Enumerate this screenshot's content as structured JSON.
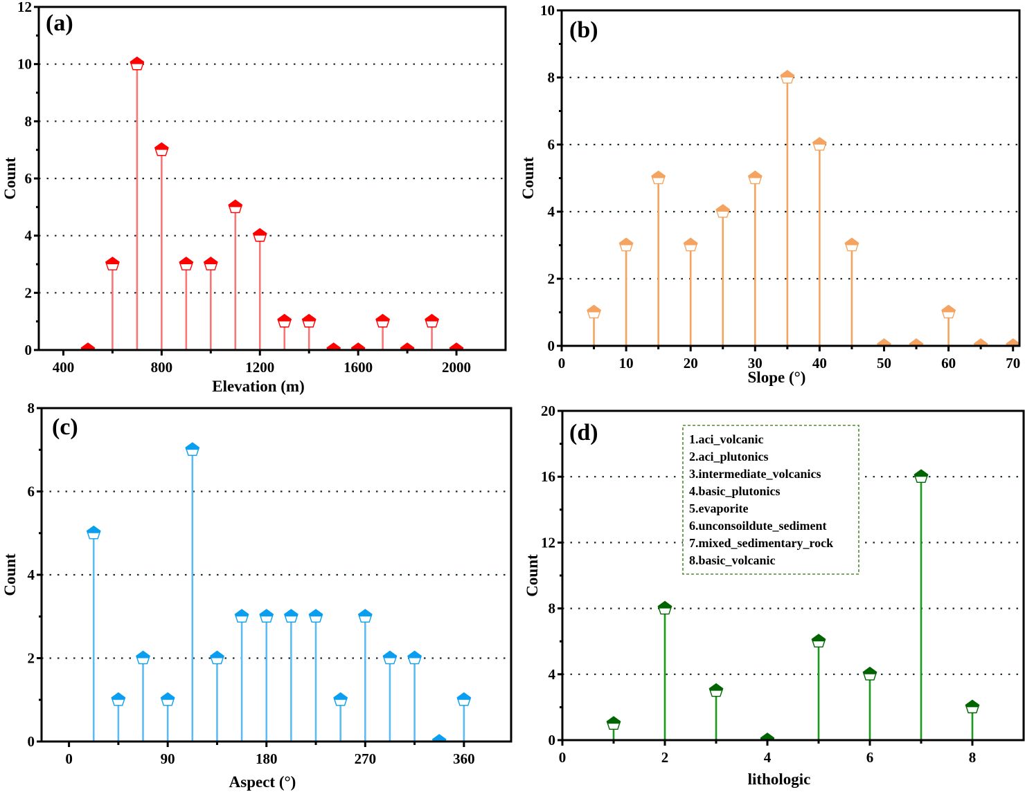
{
  "figure": {
    "panels": [
      "a",
      "b",
      "c",
      "d"
    ]
  },
  "chart_data": [
    {
      "id": "a",
      "type": "stem",
      "panel_label": "(a)",
      "title": "",
      "xlabel": "Elevation (m)",
      "ylabel": "Count",
      "xlim": [
        300,
        2200
      ],
      "ylim": [
        0,
        12
      ],
      "xticks": [
        400,
        800,
        1200,
        1600,
        2000
      ],
      "xtick_labels": [
        "400",
        "800",
        "1200",
        "1600",
        "2000"
      ],
      "yticks": [
        0,
        2,
        4,
        6,
        8,
        10,
        12
      ],
      "ytick_labels": [
        "0",
        "2",
        "4",
        "6",
        "8",
        "10",
        "12"
      ],
      "grid": "horizontal-dotted",
      "color": "#ff0000",
      "stem_color": "#f87676",
      "x": [
        500,
        600,
        700,
        800,
        900,
        1000,
        1100,
        1200,
        1300,
        1400,
        1500,
        1600,
        1700,
        1800,
        1900,
        2000
      ],
      "values": [
        0,
        3,
        10,
        7,
        3,
        3,
        5,
        4,
        1,
        1,
        0,
        0,
        1,
        0,
        1,
        0
      ]
    },
    {
      "id": "b",
      "type": "stem",
      "panel_label": "(b)",
      "title": "",
      "xlabel": "Slope (°)",
      "ylabel": "Count",
      "xlim": [
        0,
        71
      ],
      "ylim": [
        0,
        10
      ],
      "xticks": [
        0,
        10,
        20,
        30,
        40,
        50,
        60,
        70
      ],
      "xtick_labels": [
        "0",
        "10",
        "20",
        "30",
        "40",
        "50",
        "60",
        "70"
      ],
      "yticks": [
        0,
        2,
        4,
        6,
        8,
        10
      ],
      "ytick_labels": [
        "0",
        "2",
        "4",
        "6",
        "8",
        "10"
      ],
      "grid": "horizontal-dotted",
      "color": "#f4a460",
      "stem_color": "#f4a460",
      "x": [
        5,
        10,
        15,
        20,
        25,
        30,
        35,
        40,
        45,
        50,
        55,
        60,
        65,
        70
      ],
      "values": [
        1,
        3,
        5,
        3,
        4,
        5,
        8,
        6,
        3,
        0,
        0,
        1,
        0,
        0
      ]
    },
    {
      "id": "c",
      "type": "stem",
      "panel_label": "(c)",
      "title": "",
      "xlabel": "Aspect (°)",
      "ylabel": "Count",
      "xlim": [
        -25,
        403
      ],
      "ylim": [
        0,
        8
      ],
      "xticks": [
        0,
        90,
        180,
        270,
        360
      ],
      "xtick_labels": [
        "0",
        "90",
        "180",
        "270",
        "360"
      ],
      "yticks": [
        0,
        2,
        4,
        6,
        8
      ],
      "ytick_labels": [
        "0",
        "2",
        "4",
        "6",
        "8"
      ],
      "grid": "horizontal-dotted",
      "color": "#0a9ef0",
      "stem_color": "#5bbcf5",
      "x": [
        22.5,
        45,
        67.5,
        90,
        112.5,
        135,
        157.5,
        180,
        202.5,
        225,
        247.5,
        270,
        292.5,
        315,
        337.5,
        360
      ],
      "values": [
        5,
        1,
        2,
        1,
        7,
        2,
        3,
        3,
        3,
        3,
        1,
        3,
        2,
        2,
        0,
        1
      ]
    },
    {
      "id": "d",
      "type": "stem",
      "panel_label": "(d)",
      "title": "",
      "xlabel": "lithologic",
      "ylabel": "Count",
      "xlim": [
        0,
        9
      ],
      "ylim": [
        0,
        20
      ],
      "xticks": [
        0,
        2,
        4,
        6,
        8
      ],
      "xtick_labels": [
        "0",
        "2",
        "4",
        "6",
        "8"
      ],
      "yticks": [
        0,
        4,
        8,
        12,
        16,
        20
      ],
      "ytick_labels": [
        "0",
        "4",
        "8",
        "12",
        "16",
        "20"
      ],
      "grid": "horizontal-dotted",
      "color": "#006400",
      "stem_color": "#1a9a1a",
      "x": [
        1,
        2,
        3,
        4,
        5,
        6,
        7,
        8
      ],
      "values": [
        1,
        8,
        3,
        0,
        6,
        4,
        16,
        2
      ],
      "legend": {
        "placement": "top-center",
        "border_color": "#4e8a2e",
        "entries": [
          "1.aci_volcanic",
          "2.aci_plutonics",
          "3.intermediate_volcanics",
          "4.basic_plutonics",
          "5.evaporite",
          "6.unconsoildute_sediment",
          "7.mixed_sedimentary_rock",
          "8.basic_volcanic"
        ]
      }
    }
  ]
}
